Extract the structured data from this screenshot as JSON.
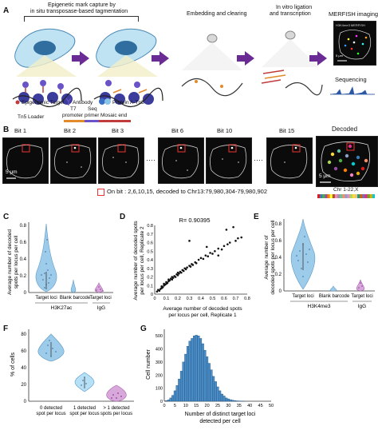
{
  "panelA": {
    "letter": "A",
    "top_label_line1": "Epigenetic mark capture by",
    "top_label_line2": "in situ transposase-based tagmentation",
    "step2": "Embedding  and clearing",
    "step3_line1": "In vitro ligation",
    "step3_line2": "and transcription",
    "step4": "MERFISH imaging",
    "step5": "Sequencing",
    "legend_target": "Epigenomic Target",
    "legend_antibody": "Antibody",
    "legend_protein": "Protein A-Tn5",
    "legend_loader": "Tn5 Loader",
    "legend_t7_line1": "T7",
    "legend_t7_line2": "promoter",
    "legend_seq_line1": "Seq",
    "legend_seq_line2": "primer",
    "legend_mosaic": "Mosaic end",
    "scale": "5 μm",
    "inset_text": "H3K4me3 MERFISH"
  },
  "panelB": {
    "letter": "B",
    "bits": [
      "Bit 1",
      "Bit 2",
      "Bit 3",
      "Bit 6",
      "Bit 10",
      "Bit 15"
    ],
    "decoded": "Decoded",
    "scale": "5 μm",
    "legend": "On bit : 2,6,10,15, decoded to Chr13:79,980,304-79,980,902",
    "chr_label": "Chr 1-22,X",
    "chr_colors": [
      "#e41a1c",
      "#377eb8",
      "#4daf4a",
      "#984ea3",
      "#ff7f00",
      "#ffff33",
      "#a65628",
      "#f781bf",
      "#999999",
      "#66c2a5",
      "#fc8d62",
      "#8da0cb",
      "#e78ac3",
      "#a6d854",
      "#ffd92f",
      "#e5c494",
      "#1b9e77",
      "#d95f02",
      "#7570b3",
      "#e7298a",
      "#66a61e",
      "#e6ab02",
      "#00ced1"
    ]
  },
  "panelC": {
    "letter": "C",
    "ylabel_line1": "Average number of decoded",
    "ylabel_line2": "spots per locus per cell",
    "yticks": [
      "0",
      "0.2",
      "0.4",
      "0.6",
      "0.8"
    ],
    "categories": [
      "Target loci",
      "Blank barcode",
      "Target loci"
    ],
    "group1": "H3K27ac",
    "group2": "IgG"
  },
  "panelD": {
    "letter": "D",
    "r_label": "R= 0.90395",
    "ylabel_line1": "Average number of decoded spots",
    "ylabel_line2": "per locus per cell, Replicate 2",
    "xlabel_line1": "Average number of decoded spots",
    "xlabel_line2": "per locus per cell, Replicate 1",
    "ticks": [
      "0",
      "0.1",
      "0.2",
      "0.3",
      "0.4",
      "0.5",
      "0.6",
      "0.7",
      "0.8"
    ]
  },
  "panelE": {
    "letter": "E",
    "ylabel_line1": "Average number of",
    "ylabel_line2": "decoded spots per locus per cell",
    "yticks": [
      "0",
      "0.2",
      "0.4",
      "0.6",
      "0.8"
    ],
    "categories": [
      "Target loci",
      "Blank barcode",
      "Target loci"
    ],
    "group1": "H3K4me3",
    "group2": "IgG"
  },
  "panelF": {
    "letter": "F",
    "ylabel": "% of cells",
    "yticks": [
      "0",
      "20",
      "40",
      "60",
      "80"
    ],
    "cat1_line1": "0 detected",
    "cat1_line2": "spot per locus",
    "cat2_line1": "1 detected",
    "cat2_line2": "spot per locus",
    "cat3_line1": "> 1 detected",
    "cat3_line2": "spots per locus"
  },
  "panelG": {
    "letter": "G",
    "ylabel": "Cell number",
    "xlabel_line1": "Number of distinct target loci",
    "xlabel_line2": "detected per cell",
    "yticks": [
      "0",
      "100",
      "200",
      "300",
      "400",
      "500"
    ],
    "xticks": [
      "0",
      "5",
      "10",
      "15",
      "20",
      "25",
      "30",
      "35",
      "40",
      "45",
      "50"
    ]
  },
  "chart_data": [
    {
      "type": "scatter",
      "panel": "D",
      "title": "",
      "annotation": "R= 0.90395",
      "xlabel": "Average number of decoded spots per locus per cell, Replicate 1",
      "ylabel": "Average number of decoded spots per locus per cell, Replicate 2",
      "xlim": [
        0,
        0.8
      ],
      "ylim": [
        0,
        0.8
      ],
      "x": [
        0.02,
        0.03,
        0.04,
        0.05,
        0.06,
        0.06,
        0.07,
        0.08,
        0.08,
        0.09,
        0.1,
        0.1,
        0.11,
        0.12,
        0.12,
        0.13,
        0.14,
        0.15,
        0.15,
        0.16,
        0.17,
        0.18,
        0.19,
        0.2,
        0.2,
        0.21,
        0.22,
        0.23,
        0.24,
        0.25,
        0.26,
        0.27,
        0.28,
        0.3,
        0.31,
        0.32,
        0.33,
        0.35,
        0.36,
        0.38,
        0.4,
        0.42,
        0.44,
        0.46,
        0.48,
        0.5,
        0.52,
        0.55,
        0.58,
        0.6,
        0.63,
        0.65,
        0.7,
        0.72,
        0.75,
        0.3,
        0.45,
        0.62,
        0.68,
        0.55
      ],
      "y": [
        0.03,
        0.05,
        0.04,
        0.06,
        0.07,
        0.09,
        0.08,
        0.1,
        0.12,
        0.11,
        0.12,
        0.14,
        0.13,
        0.15,
        0.17,
        0.16,
        0.18,
        0.17,
        0.2,
        0.19,
        0.21,
        0.2,
        0.23,
        0.22,
        0.25,
        0.24,
        0.26,
        0.25,
        0.28,
        0.27,
        0.3,
        0.29,
        0.31,
        0.33,
        0.32,
        0.35,
        0.34,
        0.37,
        0.36,
        0.4,
        0.42,
        0.41,
        0.45,
        0.44,
        0.48,
        0.47,
        0.5,
        0.53,
        0.52,
        0.56,
        0.58,
        0.6,
        0.62,
        0.65,
        0.66,
        0.62,
        0.55,
        0.75,
        0.78,
        0.45
      ]
    },
    {
      "type": "bar",
      "panel": "G",
      "title": "",
      "xlabel": "Number of distinct target loci detected per cell",
      "ylabel": "Cell number",
      "x": [
        1,
        2,
        3,
        4,
        5,
        6,
        7,
        8,
        9,
        10,
        11,
        12,
        13,
        14,
        15,
        16,
        17,
        18,
        19,
        20,
        21,
        22,
        23,
        24,
        25,
        26,
        27,
        28,
        29,
        30,
        31,
        32,
        33,
        34,
        35,
        36,
        37
      ],
      "values": [
        5,
        10,
        25,
        45,
        80,
        120,
        170,
        230,
        300,
        360,
        420,
        460,
        480,
        500,
        505,
        500,
        480,
        440,
        390,
        340,
        290,
        240,
        190,
        150,
        110,
        80,
        55,
        40,
        25,
        18,
        12,
        8,
        5,
        3,
        2,
        1,
        1
      ],
      "xlim": [
        0,
        50
      ],
      "ylim": [
        0,
        550
      ]
    },
    {
      "type": "violin",
      "panel": "C",
      "categories": [
        "Target loci",
        "Blank barcode",
        "Target loci"
      ],
      "groups": [
        "H3K27ac",
        "H3K27ac",
        "IgG"
      ],
      "median": [
        0.25,
        0.01,
        0.03
      ],
      "max": [
        0.82,
        0.08,
        0.12
      ],
      "ylim": [
        0,
        0.85
      ]
    },
    {
      "type": "violin",
      "panel": "E",
      "categories": [
        "Target loci",
        "Blank barcode",
        "Target loci"
      ],
      "groups": [
        "H3K4me3",
        "H3K4me3",
        "IgG"
      ],
      "median": [
        0.45,
        0.01,
        0.02
      ],
      "max": [
        0.85,
        0.05,
        0.12
      ],
      "ylim": [
        0,
        0.9
      ]
    },
    {
      "type": "violin",
      "panel": "F",
      "categories": [
        "0 detected spot per locus",
        "1 detected spot per locus",
        "> 1 detected spots per locus"
      ],
      "median": [
        63,
        25,
        10
      ],
      "min": [
        48,
        15,
        3
      ],
      "max": [
        80,
        33,
        20
      ],
      "ylim": [
        0,
        85
      ]
    }
  ]
}
